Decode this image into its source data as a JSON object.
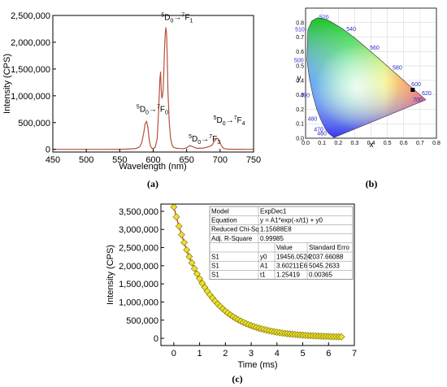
{
  "chart_data": [
    {
      "panel": "(a)",
      "type": "line",
      "xlabel": "Wavelength (nm)",
      "ylabel": "Intensity (CPS)",
      "xlim": [
        450,
        750
      ],
      "ylim": [
        -50000,
        2500000
      ],
      "xticks": [
        450,
        500,
        550,
        600,
        650,
        700,
        750
      ],
      "yticks": [
        0,
        500000,
        1000000,
        1500000,
        2000000,
        2500000
      ],
      "ytick_labels": [
        "0",
        "500,000",
        "1,000,000",
        "1,500,000",
        "2,000,000",
        "2,500,000"
      ],
      "line_color": "#b5523a",
      "series": [
        {
          "x": [
            450,
            470,
            490,
            510,
            530,
            550,
            560,
            570,
            575,
            580,
            583,
            586,
            588,
            590,
            592,
            594,
            596,
            598,
            600,
            603,
            606,
            608,
            610,
            611,
            612,
            613,
            614,
            615,
            616,
            617,
            618,
            619,
            620,
            621,
            622,
            624,
            626,
            628,
            630,
            635,
            640,
            645,
            650,
            655,
            660,
            665,
            670,
            675,
            680,
            685,
            688,
            690,
            692,
            694,
            696,
            698,
            700,
            702,
            704,
            706,
            710,
            720,
            730,
            740,
            750
          ],
          "y": [
            0,
            0,
            0,
            0,
            0,
            2000,
            5000,
            10000,
            18000,
            50000,
            130000,
            320000,
            480000,
            520000,
            420000,
            180000,
            60000,
            20000,
            15000,
            40000,
            200000,
            700000,
            1300000,
            1450000,
            1100000,
            950000,
            1000000,
            1150000,
            1500000,
            1900000,
            2150000,
            2280000,
            2150000,
            1700000,
            1100000,
            500000,
            200000,
            90000,
            40000,
            20000,
            15000,
            12000,
            30000,
            70000,
            45000,
            20000,
            20000,
            25000,
            40000,
            60000,
            80000,
            120000,
            160000,
            200000,
            210000,
            180000,
            120000,
            70000,
            30000,
            15000,
            5000,
            2000,
            1000,
            0,
            0
          ]
        }
      ],
      "annotations": [
        {
          "transition": "5D0→7F0",
          "sub0": "0",
          "sup": "7",
          "letter": "F",
          "sub1": "0",
          "x": 575,
          "y": 700000
        },
        {
          "transition": "5D0→7F1",
          "sub0": "0",
          "sup": "7",
          "letter": "F",
          "sub1": "1",
          "x": 612,
          "y": 2420000
        },
        {
          "transition": "5D0→7F3",
          "sub0": "0",
          "sup": "7",
          "letter": "F",
          "sub1": "3",
          "x": 653,
          "y": 150000
        },
        {
          "transition": "5D0→7F4",
          "sub0": "0",
          "sup": "7",
          "letter": "F",
          "sub1": "4",
          "x": 690,
          "y": 500000
        }
      ]
    },
    {
      "panel": "(b)",
      "type": "scatter",
      "xlabel": "x",
      "ylabel": "y",
      "xlim": [
        0,
        0.8
      ],
      "ylim": [
        0,
        0.9
      ],
      "xticks": [
        "0.0",
        "0.1",
        "0.2",
        "0.3",
        "0.4",
        "0.5",
        "0.6",
        "0.7",
        "0.8"
      ],
      "yticks": [
        "0.0",
        "0.1",
        "0.2",
        "0.3",
        "0.4",
        "0.5",
        "0.6",
        "0.7",
        "0.8"
      ],
      "wavelength_labels": [
        {
          "label": "460",
          "x": 0.144,
          "y": 0.03
        },
        {
          "label": "470",
          "x": 0.124,
          "y": 0.058
        },
        {
          "label": "480",
          "x": 0.091,
          "y": 0.133
        },
        {
          "label": "490",
          "x": 0.045,
          "y": 0.295
        },
        {
          "label": "500",
          "x": 0.008,
          "y": 0.538
        },
        {
          "label": "510",
          "x": 0.014,
          "y": 0.75
        },
        {
          "label": "520",
          "x": 0.074,
          "y": 0.834
        },
        {
          "label": "540",
          "x": 0.23,
          "y": 0.754
        },
        {
          "label": "560",
          "x": 0.373,
          "y": 0.624
        },
        {
          "label": "580",
          "x": 0.512,
          "y": 0.487
        },
        {
          "label": "600",
          "x": 0.627,
          "y": 0.372
        },
        {
          "label": "620",
          "x": 0.691,
          "y": 0.308
        },
        {
          "label": "700",
          "x": 0.735,
          "y": 0.265
        }
      ],
      "locus": [
        [
          0.1741,
          0.005
        ],
        [
          0.144,
          0.0297
        ],
        [
          0.1241,
          0.0578
        ],
        [
          0.0913,
          0.1327
        ],
        [
          0.0687,
          0.2007
        ],
        [
          0.0454,
          0.295
        ],
        [
          0.0235,
          0.4127
        ],
        [
          0.0082,
          0.5384
        ],
        [
          0.0139,
          0.7502
        ],
        [
          0.0389,
          0.812
        ],
        [
          0.0743,
          0.8338
        ],
        [
          0.1142,
          0.8262
        ],
        [
          0.1547,
          0.8059
        ],
        [
          0.2296,
          0.7543
        ],
        [
          0.3016,
          0.6923
        ],
        [
          0.3731,
          0.6245
        ],
        [
          0.4441,
          0.5547
        ],
        [
          0.5125,
          0.4866
        ],
        [
          0.5752,
          0.4242
        ],
        [
          0.627,
          0.3725
        ],
        [
          0.6658,
          0.334
        ],
        [
          0.6915,
          0.3083
        ],
        [
          0.7079,
          0.292
        ],
        [
          0.7347,
          0.2653
        ]
      ],
      "point": {
        "x": 0.655,
        "y": 0.335
      }
    },
    {
      "panel": "(c)",
      "type": "scatter",
      "xlabel": "Time (ms)",
      "ylabel": "Intensity (CPS)",
      "xlim": [
        -0.5,
        7
      ],
      "ylim": [
        -200000,
        3700000
      ],
      "xticks": [
        0,
        1,
        2,
        3,
        4,
        5,
        6,
        7
      ],
      "yticks": [
        0,
        500000,
        1000000,
        1500000,
        2000000,
        2500000,
        3000000,
        3500000
      ],
      "ytick_labels": [
        "0",
        "500,000",
        "1,000,000",
        "1,500,000",
        "2,000,000",
        "2,500,000",
        "3,000,000",
        "3,500,000"
      ],
      "marker_fill": "#e8e22a",
      "fit_color": "#d02020",
      "fit": {
        "y0": 19456.0524,
        "A1": 3602110,
        "t1": 1.25419
      },
      "x_start": 0,
      "x_end": 6.5,
      "n_points": 66,
      "fit_table": {
        "rows": [
          [
            "Model",
            "ExpDec1"
          ],
          [
            "Equation",
            "y = A1*exp(-x/t1) + y0"
          ],
          [
            "Reduced Chi-Sq",
            "1.15688E8"
          ],
          [
            "Adj. R-Square",
            "0.99985"
          ]
        ],
        "param_header": [
          "",
          "",
          "Value",
          "Standard Erro"
        ],
        "params": [
          [
            "S1",
            "y0",
            "19456.0524",
            "2037.66088"
          ],
          [
            "S1",
            "A1",
            "3.60211E6",
            "5045.2633"
          ],
          [
            "S1",
            "t1",
            "1.25419",
            "0.00365"
          ]
        ]
      }
    }
  ]
}
